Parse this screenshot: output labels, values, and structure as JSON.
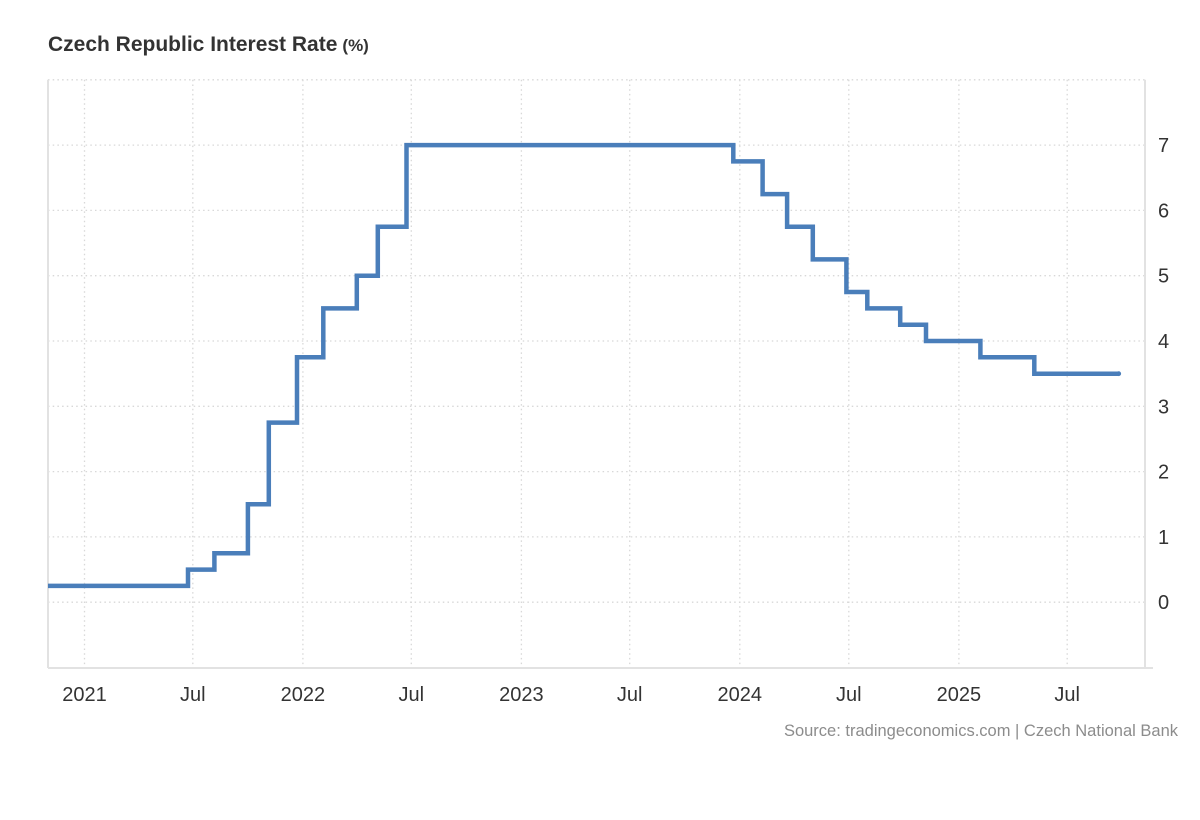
{
  "title": {
    "text": "Czech Republic Interest Rate",
    "unit": "(%)"
  },
  "source": {
    "text": "Source: tradingeconomics.com | Czech National Bank"
  },
  "colors": {
    "line": "#4a7eba",
    "grid": "#d8d8d8",
    "axis": "#e2e2e2",
    "text": "#333333",
    "source_text": "#8c8c8c",
    "background": "#ffffff"
  },
  "chart_data": {
    "type": "line",
    "step": true,
    "title": "Czech Republic Interest Rate (%)",
    "xlabel": "",
    "ylabel": "",
    "legend": "none",
    "grid": "dotted",
    "y_axis_side": "right",
    "x_domain": [
      "2020-11-01",
      "2025-11-08"
    ],
    "y_domain": [
      -1,
      8
    ],
    "y_ticks": [
      0,
      1,
      2,
      3,
      4,
      5,
      6,
      7
    ],
    "y_gridlines": [
      0,
      1,
      2,
      3,
      4,
      5,
      6,
      7,
      8
    ],
    "x_ticks": [
      {
        "label": "2021",
        "date": "2021-01-01"
      },
      {
        "label": "Jul",
        "date": "2021-07-01"
      },
      {
        "label": "2022",
        "date": "2022-01-01"
      },
      {
        "label": "Jul",
        "date": "2022-07-01"
      },
      {
        "label": "2023",
        "date": "2023-01-01"
      },
      {
        "label": "Jul",
        "date": "2023-07-01"
      },
      {
        "label": "2024",
        "date": "2024-01-01"
      },
      {
        "label": "Jul",
        "date": "2024-07-01"
      },
      {
        "label": "2025",
        "date": "2025-01-01"
      },
      {
        "label": "Jul",
        "date": "2025-07-01"
      }
    ],
    "series": [
      {
        "name": "Czech Republic Interest Rate (%)",
        "color": "#4a7eba",
        "points": [
          [
            "2020-11-01",
            0.25
          ],
          [
            "2021-06-23",
            0.5
          ],
          [
            "2021-08-06",
            0.75
          ],
          [
            "2021-10-01",
            1.5
          ],
          [
            "2021-11-05",
            2.75
          ],
          [
            "2021-12-22",
            3.75
          ],
          [
            "2022-02-04",
            4.5
          ],
          [
            "2022-04-01",
            5.0
          ],
          [
            "2022-05-06",
            5.75
          ],
          [
            "2022-06-23",
            7.0
          ],
          [
            "2023-12-21",
            6.75
          ],
          [
            "2024-02-08",
            6.25
          ],
          [
            "2024-03-20",
            5.75
          ],
          [
            "2024-05-02",
            5.25
          ],
          [
            "2024-06-27",
            4.75
          ],
          [
            "2024-08-01",
            4.5
          ],
          [
            "2024-09-25",
            4.25
          ],
          [
            "2024-11-07",
            4.0
          ],
          [
            "2025-02-06",
            3.75
          ],
          [
            "2025-05-07",
            3.5
          ],
          [
            "2025-09-25",
            3.5
          ]
        ]
      }
    ]
  }
}
